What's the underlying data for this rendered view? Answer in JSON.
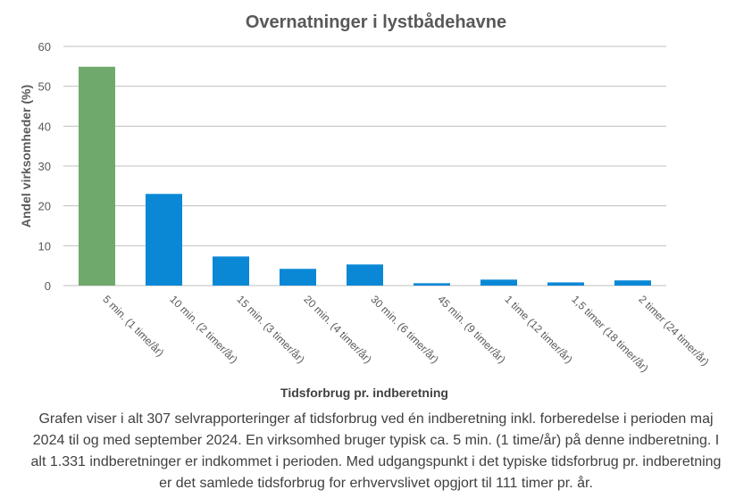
{
  "chart_data": {
    "type": "bar",
    "title": "Overnatninger i lystbådehavne",
    "xlabel": "Tidsforbrug pr. indberetning",
    "ylabel": "Andel virksomheder (%)",
    "ylim": [
      0,
      60
    ],
    "yticks": [
      "0",
      "10",
      "20",
      "30",
      "40",
      "50",
      "60"
    ],
    "grid": true,
    "legend": "none",
    "categories": [
      "5 min. (1 time/år)",
      "10 min. (2 timer/år)",
      "15 min. (3 timer/år)",
      "20 min. (4 timer/år)",
      "30 min. (6 timer/år)",
      "45 min. (9 timer/år)",
      "1 time (12 timer/år)",
      "1,5 timer (18 timer/år)",
      "2 timer (24 timer/år)"
    ],
    "values": [
      54.9,
      23.0,
      7.3,
      4.2,
      5.3,
      0.6,
      1.5,
      0.8,
      1.3
    ],
    "colors": {
      "highlight": "#70A96C",
      "bar": "#0A88D6",
      "grid": "#BFBFBF",
      "axis_text": "#595959"
    },
    "highlight_index": 0
  },
  "caption": "Grafen viser i alt 307 selvrapporteringer af tidsforbrug ved én indberetning inkl. forberedelse i perioden maj 2024 til og med september 2024. En virksomhed bruger typisk ca. 5 min. (1 time/år) på denne indberetning. I alt 1.331 indberetninger er indkommet i perioden. Med udgangspunkt i det typiske tidsforbrug pr. indberetning er det samlede tidsforbrug for erhvervslivet opgjort til 111 timer pr. år."
}
